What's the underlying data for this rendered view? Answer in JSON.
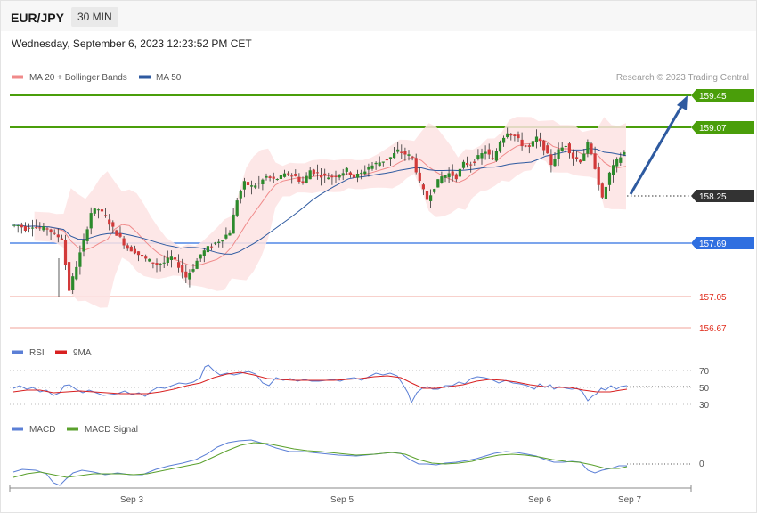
{
  "header": {
    "pair": "EUR/JPY",
    "timeframe": "30 MIN"
  },
  "datetime": "Wednesday, September 6, 2023 12:23:52 PM CET",
  "legends": {
    "main": [
      {
        "label": "MA 20 + Bollinger Bands",
        "color": "#f08a8a"
      },
      {
        "label": "MA 50",
        "color": "#2e5aa0"
      }
    ],
    "rsi": [
      {
        "label": "RSI",
        "color": "#5b7fd6"
      },
      {
        "label": "9MA",
        "color": "#d82020"
      }
    ],
    "macd": [
      {
        "label": "MACD",
        "color": "#5b7fd6"
      },
      {
        "label": "MACD Signal",
        "color": "#5aa02c"
      }
    ]
  },
  "copyright": "Research © 2023 Trading Central",
  "chart_data": {
    "type": "candlestick",
    "pair": "EUR/JPY",
    "x_ticks": [
      "Sep 3",
      "Sep 5",
      "Sep 6",
      "Sep 7"
    ],
    "current_price": {
      "value": "158.25",
      "color": "#333333"
    },
    "resistances": [
      {
        "value": "159.45",
        "color": "#4a9e0a"
      },
      {
        "value": "159.07",
        "color": "#4a9e0a"
      }
    ],
    "pivot": {
      "value": "157.69",
      "color": "#2f6fe0"
    },
    "supports": [
      {
        "value": "157.05",
        "color": "#e02a1a"
      },
      {
        "value": "156.67",
        "color": "#e02a1a"
      }
    ],
    "arrow": {
      "direction": "up",
      "from": 158.25,
      "to": 159.45
    },
    "price_path": [
      157.8,
      157.8,
      157.78,
      157.8,
      157.78,
      157.78,
      157.74,
      157.72,
      157.4,
      157.55,
      157.7,
      157.88,
      157.9,
      157.85,
      157.78,
      157.72,
      157.66,
      157.64,
      157.6,
      157.58,
      157.56,
      157.57,
      157.6,
      157.55,
      157.48,
      157.54,
      157.62,
      157.66,
      157.69,
      157.72,
      157.76,
      157.96,
      158.06,
      158.04,
      158.06,
      158.1,
      158.08,
      158.1,
      158.12,
      158.1,
      158.06,
      158.14,
      158.12,
      158.1,
      158.1,
      158.12,
      158.14,
      158.1,
      158.12,
      158.16,
      158.18,
      158.2,
      158.22,
      158.26,
      158.24,
      158.22,
      158.06,
      157.96,
      158.04,
      158.1,
      158.12,
      158.1,
      158.18,
      158.18,
      158.22,
      158.26,
      158.2,
      158.32,
      158.38,
      158.35,
      158.3,
      158.28,
      158.34,
      158.28,
      158.18,
      158.26,
      158.3,
      158.22,
      158.2,
      158.3,
      158.16,
      157.96,
      158.12,
      158.2,
      158.25
    ],
    "rsi": {
      "levels": [
        70,
        50,
        30
      ]
    },
    "macd": {
      "levels": [
        0
      ]
    }
  }
}
